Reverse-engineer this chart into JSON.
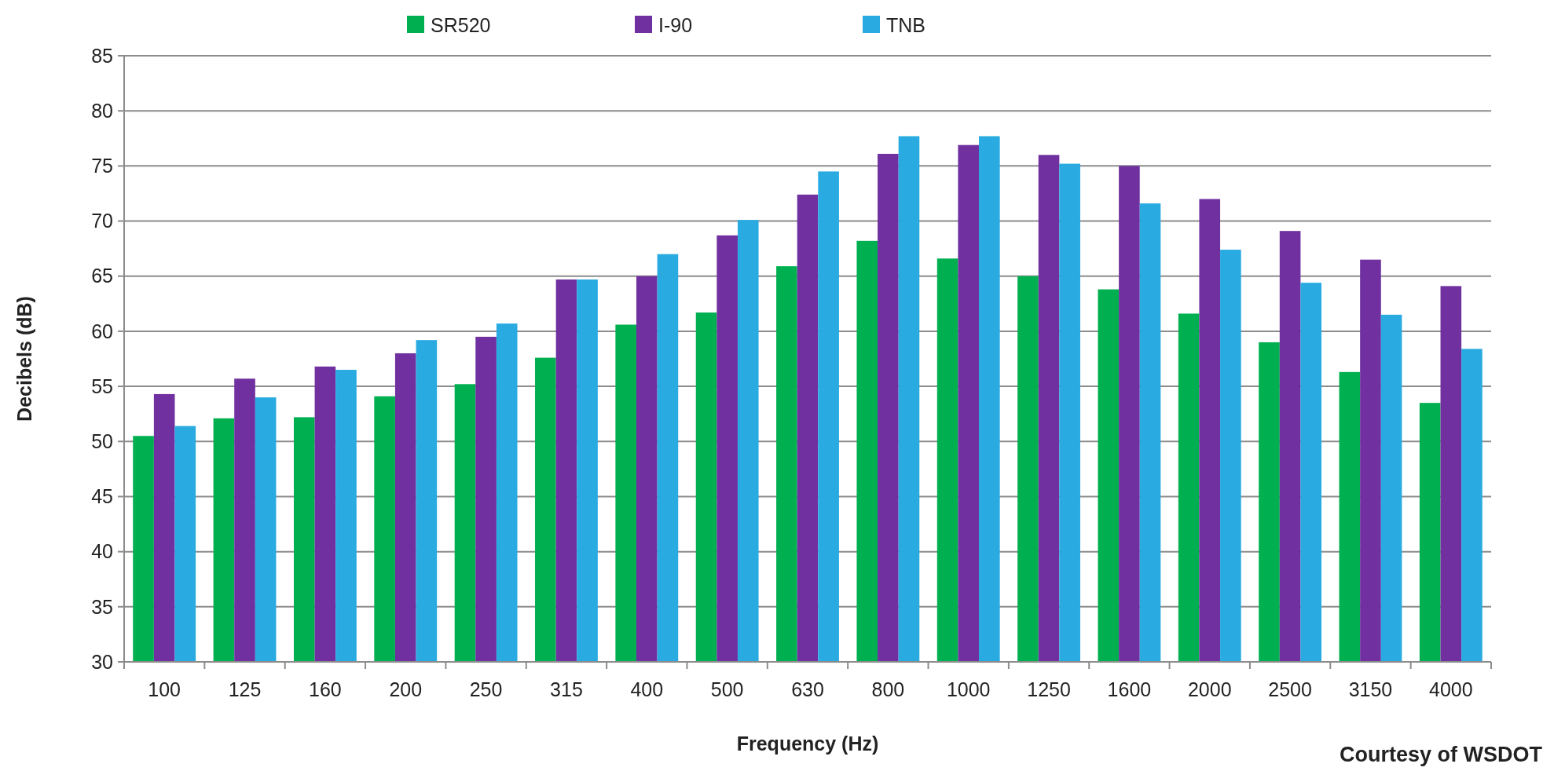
{
  "chart_data": {
    "type": "bar",
    "xlabel": "Frequency (Hz)",
    "ylabel": "Decibels (dB)",
    "annotations": [
      "Courtesy of WSDOT"
    ],
    "categories": [
      "100",
      "125",
      "160",
      "200",
      "250",
      "315",
      "400",
      "500",
      "630",
      "800",
      "1000",
      "1250",
      "1600",
      "2000",
      "2500",
      "3150",
      "4000"
    ],
    "series": [
      {
        "name": "SR520",
        "color": "#00b050",
        "values": [
          50.5,
          52.1,
          52.2,
          54.1,
          55.2,
          57.6,
          60.6,
          61.7,
          65.9,
          68.2,
          66.6,
          65.0,
          63.8,
          61.6,
          59.0,
          56.3,
          53.5
        ]
      },
      {
        "name": "I-90",
        "color": "#7030a0",
        "values": [
          54.3,
          55.7,
          56.8,
          58.0,
          59.5,
          64.7,
          65.0,
          68.7,
          72.4,
          76.1,
          76.9,
          76.0,
          75.0,
          72.0,
          69.1,
          66.5,
          64.1
        ]
      },
      {
        "name": "TNB",
        "color": "#29abe2",
        "values": [
          51.4,
          54.0,
          56.5,
          59.2,
          60.7,
          64.7,
          67.0,
          70.1,
          74.5,
          77.7,
          77.7,
          75.2,
          71.6,
          67.4,
          64.4,
          61.5,
          58.4
        ]
      }
    ],
    "ylim": [
      30,
      85
    ],
    "yticks": [
      30,
      35,
      40,
      45,
      50,
      55,
      60,
      65,
      70,
      75,
      80,
      85
    ],
    "grid": "y",
    "legend": "top"
  }
}
